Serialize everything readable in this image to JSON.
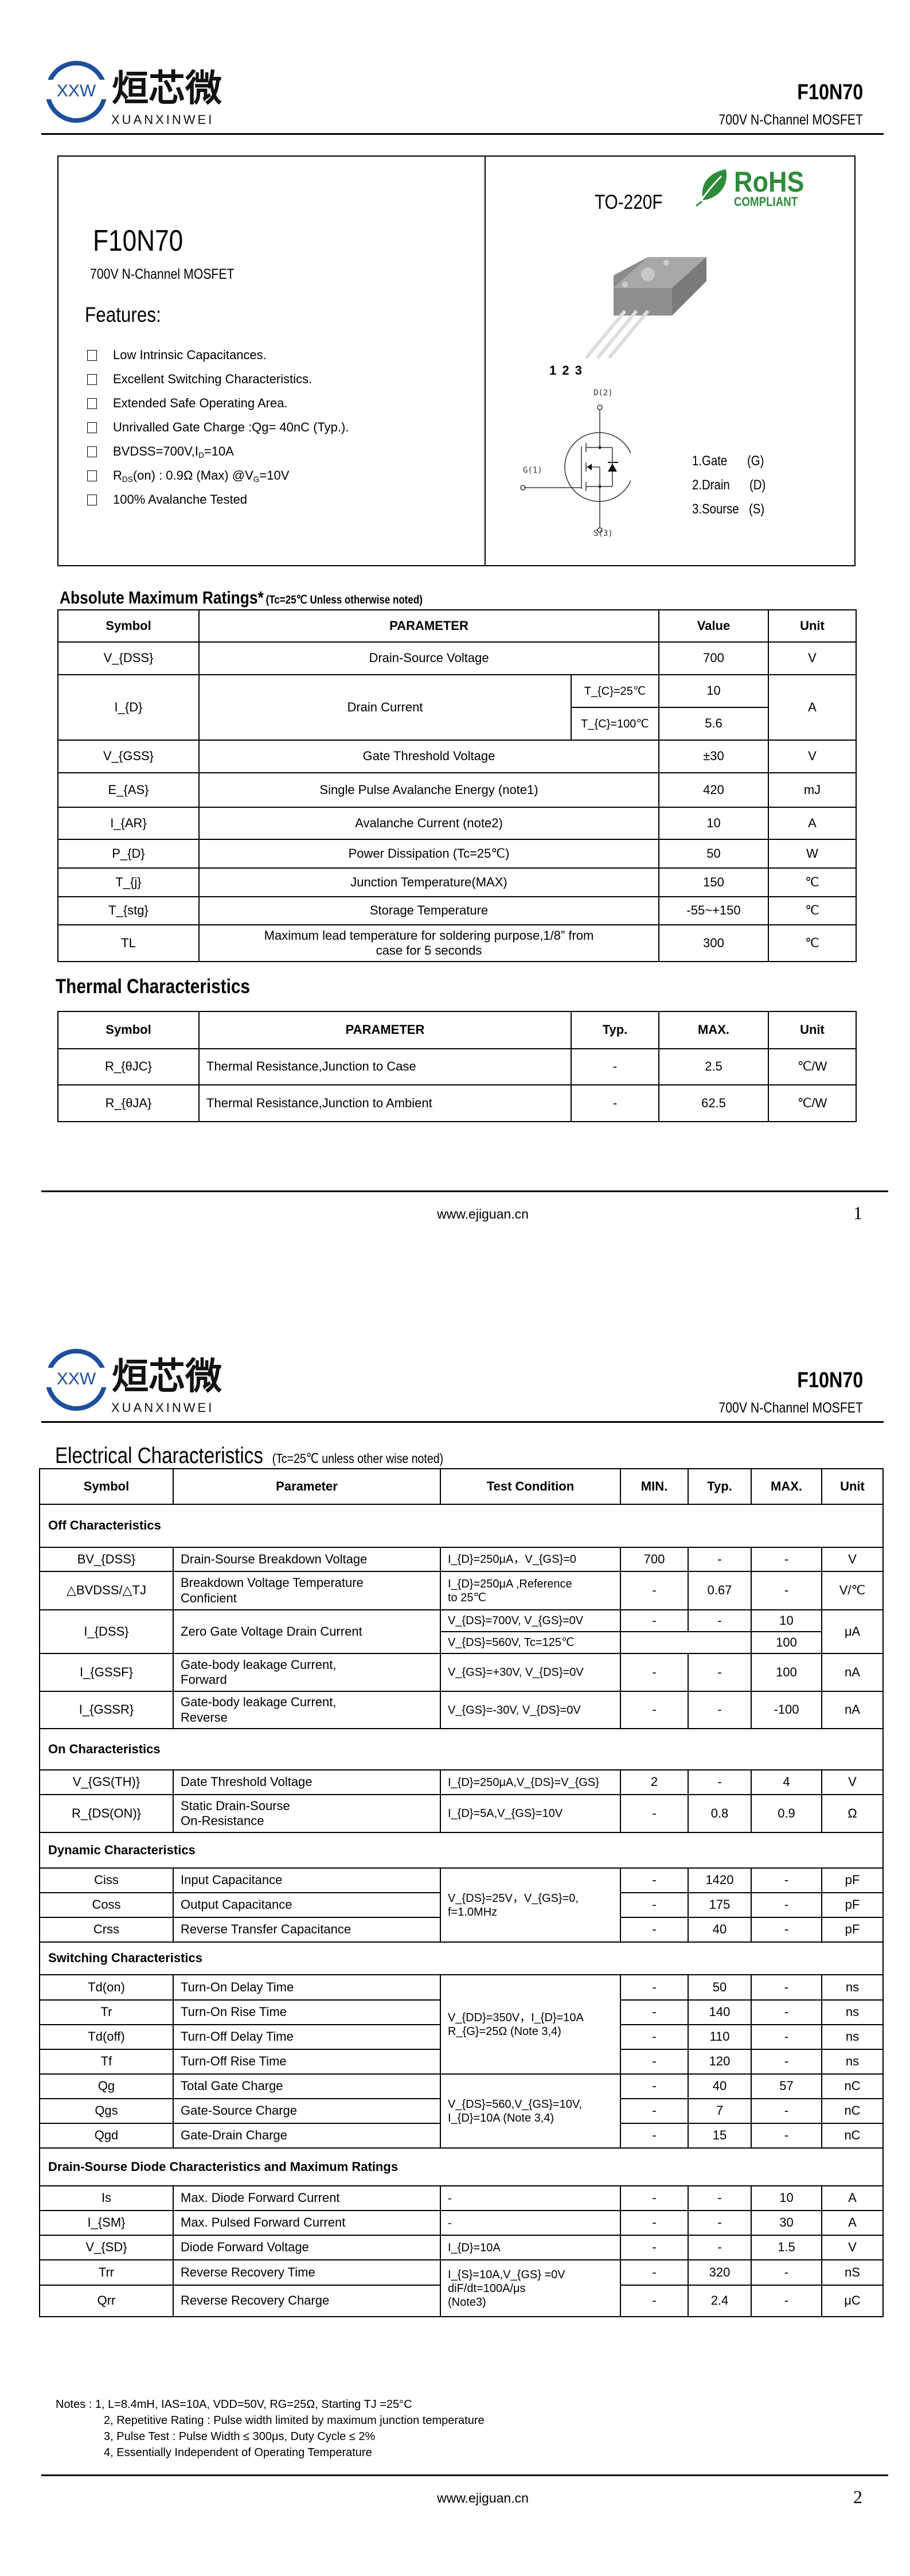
{
  "header": {
    "logo_mark": "XXW",
    "company_cn": "烜芯微",
    "company_en": "XUANXINWEI",
    "part": "F10N70",
    "subtitle": "700V N-Channel MOSFET"
  },
  "overview": {
    "part": "F10N70",
    "subtitle": "700V N-Channel MOSFET",
    "features_title": "Features:",
    "features": [
      "Low Intrinsic Capacitances.",
      "Excellent Switching Characteristics.",
      "Extended Safe Operating Area.",
      "Unrivalled Gate Charge :Qg= 40nC (Typ.).",
      "BVDSS=700V,I_{D}=10A",
      "R_{DS}(on) : 0.9Ω (Max) @V_{G}=10V",
      "100% Avalanche Tested"
    ],
    "package": "TO-220F",
    "rohs": {
      "title": "RoHS",
      "subtitle": "COMPLIANT",
      "color": "#2e8b3a"
    },
    "pin_numbers": "1 2 3",
    "schematic": {
      "drain": "D(2)",
      "gate": "G(1)",
      "source": "S(3)"
    },
    "pins": [
      {
        "name": "1.Gate",
        "code": "(G)"
      },
      {
        "name": "2.Drain",
        "code": "(D)"
      },
      {
        "name": "3.Sourse",
        "code": "(S)"
      }
    ]
  },
  "abs_max": {
    "title": "Absolute Maximum Ratings*",
    "note": "(Tc=25℃ Unless otherwise noted)",
    "headers": {
      "sym": "Symbol",
      "param": "PARAMETER",
      "value": "Value",
      "unit": "Unit"
    },
    "rows": [
      {
        "sym": "V_{DSS}",
        "param": "Drain-Source Voltage",
        "value": "700",
        "unit": "V"
      },
      {
        "sym": "I_{D}",
        "param": "Drain Current",
        "cond": "T_{C}=25℃",
        "value": "10",
        "unit": "A"
      },
      {
        "cond": "T_{C}=100℃",
        "value": "5.6"
      },
      {
        "sym": "V_{GSS}",
        "param": "Gate Threshold Voltage",
        "value": "±30",
        "unit": "V"
      },
      {
        "sym": "E_{AS}",
        "param": "Single Pulse Avalanche Energy (note1)",
        "value": "420",
        "unit": "mJ"
      },
      {
        "sym": "I_{AR}",
        "param": "Avalanche Current (note2)",
        "value": "10",
        "unit": "A"
      },
      {
        "sym": "P_{D}",
        "param": "Power Dissipation (Tc=25℃)",
        "value": "50",
        "unit": "W"
      },
      {
        "sym": "T_{j}",
        "param": "Junction Temperature(MAX)",
        "value": "150",
        "unit": "℃"
      },
      {
        "sym": "T_{stg}",
        "param": "Storage Temperature",
        "value": "-55~+150",
        "unit": "℃"
      },
      {
        "sym": "TL",
        "param": "Maximum lead temperature for soldering purpose,1/8” from\ncase for 5 seconds",
        "value": "300",
        "unit": "℃"
      }
    ]
  },
  "thermal": {
    "title": "Thermal Characteristics",
    "headers": {
      "sym": "Symbol",
      "param": "PARAMETER",
      "typ": "Typ.",
      "max": "MAX.",
      "unit": "Unit"
    },
    "rows": [
      {
        "sym": "R_{θJC}",
        "param": "Thermal Resistance,Junction to Case",
        "typ": "-",
        "max": "2.5",
        "unit": "℃/W"
      },
      {
        "sym": "R_{θJA}",
        "param": "Thermal Resistance,Junction to Ambient",
        "typ": "-",
        "max": "62.5",
        "unit": "℃/W"
      }
    ]
  },
  "electrical": {
    "title": "Electrical Characteristics",
    "note": "(Tc=25℃  unless other wise noted)",
    "headers": {
      "sym": "Symbol",
      "param": "Parameter",
      "cond": "Test Condition",
      "min": "MIN.",
      "typ": "Typ.",
      "max": "MAX.",
      "unit": "Unit"
    },
    "rows": [
      {
        "section": "Off Characteristics"
      },
      {
        "sym": "BV_{DSS}",
        "param": "Drain-Sourse Breakdown Voltage",
        "cond": "I_{D}=250μA，V_{GS}=0",
        "min": "700",
        "typ": "-",
        "max": "-",
        "unit": "V"
      },
      {
        "sym": "△BVDSS/△TJ",
        "param": "Breakdown Voltage Temperature\nConficient",
        "cond": "I_{D}=250μA ,Reference\n  to 25℃",
        "min": "-",
        "typ": "0.67",
        "max": "-",
        "unit": "V/℃"
      },
      {
        "sym": "I_{DSS}",
        "param": "Zero Gate Voltage Drain Current",
        "cond": "V_{DS}=700V, V_{GS}=0V",
        "min": "-",
        "typ": "-",
        "max": "10",
        "unit": "μA"
      },
      {
        "cond": "V_{DS}=560V, Tc=125℃",
        "mintyp": "",
        "max": "100"
      },
      {
        "sym": "I_{GSSF}",
        "param": "Gate-body leakage Current,\nForward",
        "cond": "V_{GS}=+30V, V_{DS}=0V",
        "min": "-",
        "typ": "-",
        "max": "100",
        "unit": "nA"
      },
      {
        "sym": "I_{GSSR}",
        "param": "Gate-body leakage Current,\nReverse",
        "cond": "V_{GS}=-30V, V_{DS}=0V",
        "min": "-",
        "typ": "-",
        "max": "-100",
        "unit": "nA"
      },
      {
        "section": "On Characteristics"
      },
      {
        "sym": "V_{GS(TH)}",
        "param": "Date Threshold Voltage",
        "cond": "I_{D}=250μA,V_{DS}=V_{GS}",
        "min": "2",
        "typ": "-",
        "max": "4",
        "unit": "V"
      },
      {
        "sym": "R_{DS(ON)}",
        "param": "Static Drain-Sourse\nOn-Resistance",
        "cond": "I_{D}=5A,V_{GS}=10V",
        "min": "-",
        "typ": "0.8",
        "max": "0.9",
        "unit": "Ω"
      },
      {
        "section": "Dynamic Characteristics"
      },
      {
        "sym": "Ciss",
        "param": "Input Capacitance",
        "cond": "V_{DS}=25V，V_{GS}=0,\nf=1.0MHz",
        "min": "-",
        "typ": "1420",
        "max": "-",
        "unit": "pF"
      },
      {
        "sym": "Coss",
        "param": "Output Capacitance",
        "min": "-",
        "typ": "175",
        "max": "-",
        "unit": "pF"
      },
      {
        "sym": "Crss",
        "param": "Reverse Transfer Capacitance",
        "min": "-",
        "typ": "40",
        "max": "-",
        "unit": "pF"
      },
      {
        "section": "Switching Characteristics"
      },
      {
        "sym": "Td(on)",
        "param": "Turn-On Delay Time",
        "cond": "V_{DD}=350V，I_{D}=10A\nR_{G}=25Ω (Note 3,4)",
        "min": "-",
        "typ": "50",
        "max": "-",
        "unit": "ns"
      },
      {
        "sym": "Tr",
        "param": "Turn-On Rise Time",
        "min": "-",
        "typ": "140",
        "max": "-",
        "unit": "ns"
      },
      {
        "sym": "Td(off)",
        "param": "Turn-Off Delay Time",
        "min": "-",
        "typ": "110",
        "max": "-",
        "unit": "ns"
      },
      {
        "sym": "Tf",
        "param": "Turn-Off Rise Time",
        "min": "-",
        "typ": "120",
        "max": "-",
        "unit": "ns"
      },
      {
        "sym": "Qg",
        "param": "Total Gate Charge",
        "cond": "V_{DS}=560,V_{GS}=10V,\nI_{D}=10A (Note 3,4)",
        "min": "-",
        "typ": "40",
        "max": "57",
        "unit": "nC"
      },
      {
        "sym": "Qgs",
        "param": "Gate-Source Charge",
        "min": "-",
        "typ": "7",
        "max": "-",
        "unit": "nC"
      },
      {
        "sym": "Qgd",
        "param": "Gate-Drain Charge",
        "min": "-",
        "typ": "15",
        "max": "-",
        "unit": "nC"
      },
      {
        "section": "Drain-Sourse Diode Characteristics and Maximum Ratings"
      },
      {
        "sym": "Is",
        "param": "Max. Diode Forward Current",
        "cond": "-",
        "min": "-",
        "typ": "-",
        "max": "10",
        "unit": "A"
      },
      {
        "sym": "I_{SM}",
        "param": "Max. Pulsed Forward Current",
        "cond": "-",
        "min": "-",
        "typ": "-",
        "max": "30",
        "unit": "A"
      },
      {
        "sym": "V_{SD}",
        "param": "Diode Forward Voltage",
        "cond": "I_{D}=10A",
        "min": "-",
        "typ": "-",
        "max": "1.5",
        "unit": "V"
      },
      {
        "sym": "Trr",
        "param": "Reverse Recovery Time",
        "cond": "I_{S}=10A,V_{GS} =0V\ndiF/dt=100A/μs\n(Note3)",
        "min": "-",
        "typ": "320",
        "max": "-",
        "unit": "nS"
      },
      {
        "sym": "Qrr",
        "param": "Reverse Recovery Charge",
        "min": "-",
        "typ": "2.4",
        "max": "-",
        "unit": "μC"
      }
    ]
  },
  "notes": [
    "Notes : 1, L=8.4mH, IAS=10A, VDD=50V, RG=25Ω, Starting TJ =25°C",
    "2, Repetitive Rating : Pulse width limited by maximum junction temperature",
    "3, Pulse Test : Pulse Width ≤ 300μs, Duty Cycle ≤ 2%",
    "4, Essentially Independent of Operating Temperature"
  ],
  "footer": {
    "url": "www.ejiguan.cn",
    "page1": "1",
    "page2": "2"
  },
  "colors": {
    "logo_blue": "#1d4f9c",
    "rohs_green": "#2e8b3a"
  }
}
